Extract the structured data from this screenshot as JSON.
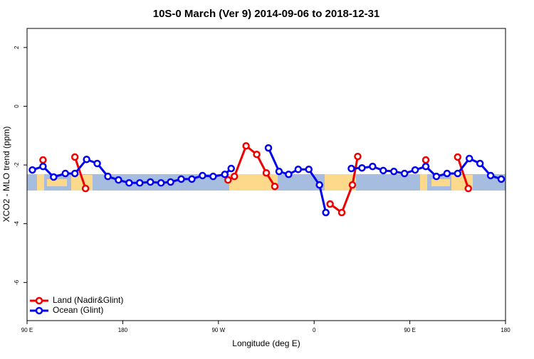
{
  "chart_data": {
    "type": "line",
    "title": "10S-0 March (Ver 9)   2014-09-06 to 2018-12-31",
    "x_label": "Longitude (deg E)",
    "y_label": "XCO2 - MLO trend (ppm)",
    "xlim": [
      90,
      540
    ],
    "ylim": [
      -7.3,
      2.65
    ],
    "xticks": [
      {
        "value": 90,
        "label": "90 E"
      },
      180,
      {
        "value": 270,
        "label": "90 W"
      },
      {
        "value": 360,
        "label": "0"
      },
      {
        "value": 450,
        "label": "90 E"
      },
      {
        "value": 540,
        "label": "180"
      }
    ],
    "yticks": [
      2,
      0,
      -2,
      -4,
      -6
    ],
    "legend": "bottom-left",
    "series": [
      {
        "name": "Land (Nadir&Glint)",
        "color": "#ee0000",
        "x": [
          105,
          null,
          135,
          145,
          null,
          279,
          285,
          296,
          306,
          315,
          323,
          null,
          375,
          386,
          396,
          401,
          null,
          465,
          null,
          495,
          505
        ],
        "values": [
          -1.83,
          null,
          -1.73,
          -2.8,
          null,
          -2.51,
          -2.39,
          -1.35,
          -1.64,
          -2.27,
          -2.73,
          null,
          -3.33,
          -3.62,
          -2.68,
          -1.71,
          null,
          -1.83,
          null,
          -1.73,
          -2.8
        ]
      },
      {
        "name": "Ocean (Glint)",
        "color": "#0000ee",
        "x": [
          95,
          105,
          115,
          126,
          135,
          146,
          156,
          166,
          176,
          186,
          196,
          206,
          216,
          225,
          235,
          245,
          255,
          265,
          276,
          282,
          null,
          317,
          327,
          336,
          345,
          355,
          365,
          371,
          null,
          395,
          405,
          415,
          425,
          435,
          445,
          455,
          465,
          475,
          485,
          495,
          506,
          516,
          526,
          536
        ],
        "values": [
          -2.17,
          -2.05,
          -2.41,
          -2.29,
          -2.29,
          -1.81,
          -1.95,
          -2.39,
          -2.51,
          -2.61,
          -2.61,
          -2.58,
          -2.61,
          -2.58,
          -2.48,
          -2.48,
          -2.36,
          -2.39,
          -2.32,
          -2.12,
          null,
          -1.42,
          -2.22,
          -2.32,
          -2.15,
          -2.15,
          -2.68,
          -3.62,
          null,
          -2.12,
          -2.1,
          -2.05,
          -2.19,
          -2.22,
          -2.29,
          -2.17,
          -2.05,
          -2.39,
          -2.29,
          -2.29,
          -1.78,
          -1.95,
          -2.36,
          -2.48
        ]
      }
    ]
  }
}
